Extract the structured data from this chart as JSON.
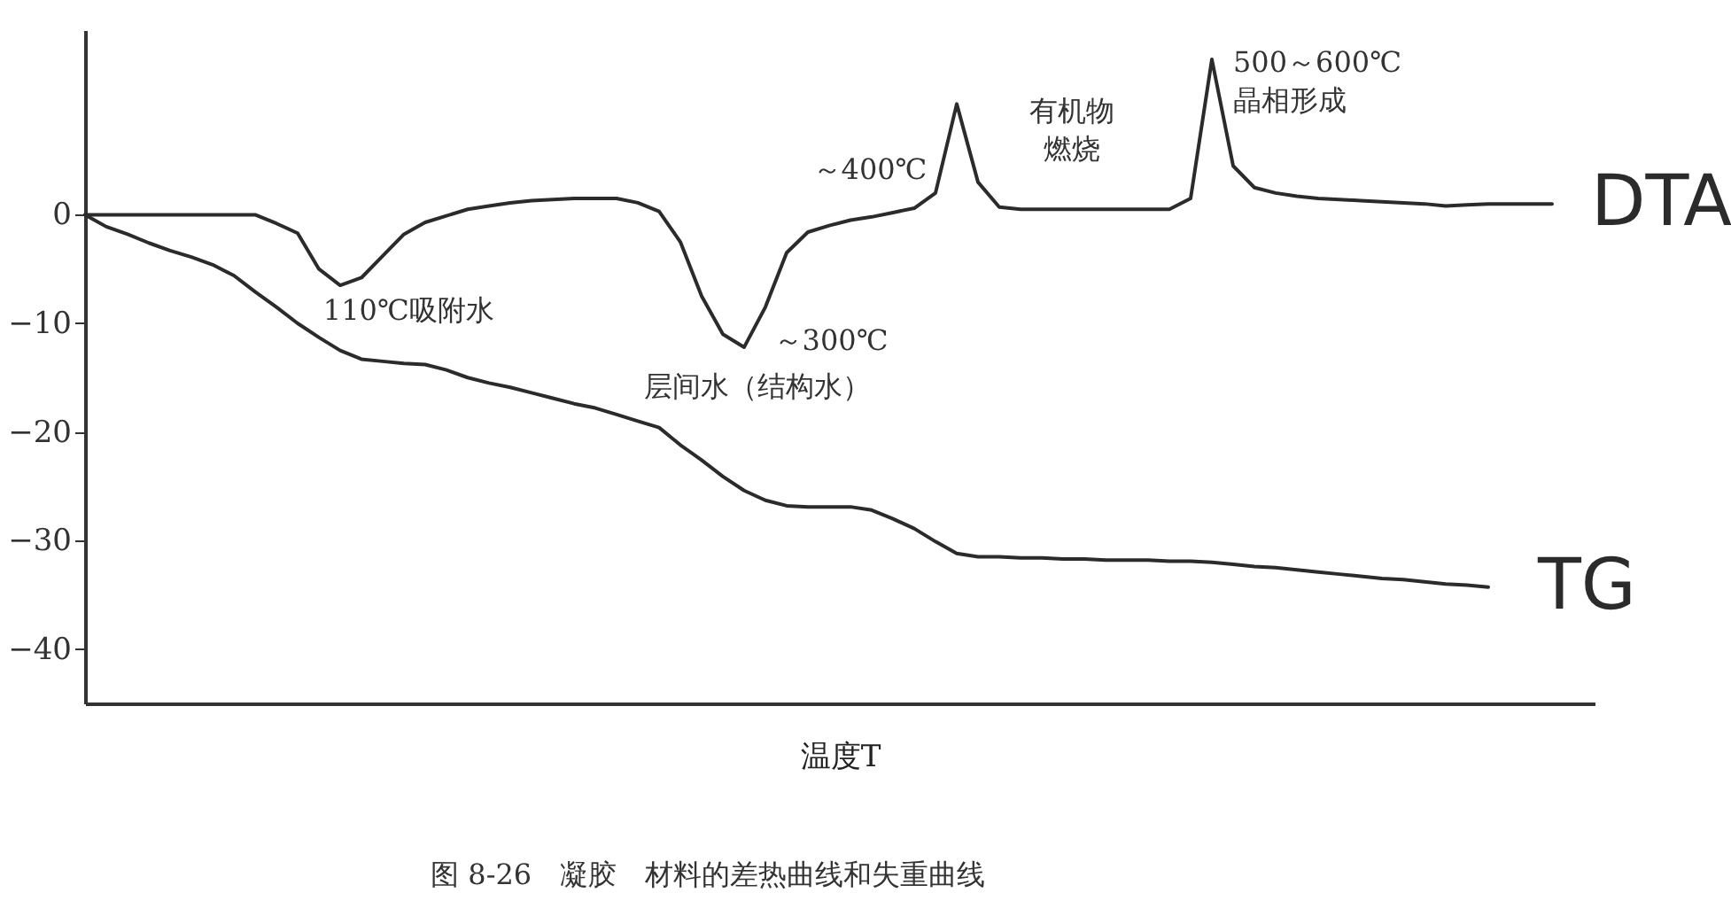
{
  "chart_data": {
    "type": "line",
    "xlabel": "温度T",
    "categories": [
      null,
      null,
      null,
      null,
      null,
      null,
      null,
      null,
      null,
      null,
      null,
      null,
      null,
      null,
      null,
      null,
      null,
      null,
      null,
      null,
      null,
      null,
      null,
      null,
      null,
      null,
      null,
      null,
      null,
      null,
      null,
      null,
      null,
      null,
      null,
      null,
      null,
      null,
      null,
      null,
      null,
      null,
      null,
      null,
      null,
      null,
      null,
      null,
      null,
      null,
      null,
      null,
      null,
      null,
      null,
      null,
      null,
      null,
      null,
      null,
      null,
      null,
      null,
      null,
      null,
      null,
      null,
      null,
      null,
      null,
      null,
      null
    ],
    "series": [
      {
        "name": "DTA",
        "color": "#2b2b2b",
        "values": [
          0,
          0,
          0,
          0,
          0,
          0,
          0,
          0,
          0,
          -0.8,
          -1.7,
          -5,
          -6.5,
          -5.8,
          -3.8,
          -1.8,
          -0.7,
          -0.1,
          0.5,
          0.8,
          1.1,
          1.3,
          1.4,
          1.5,
          1.5,
          1.5,
          1.1,
          0.3,
          -2.5,
          -7.5,
          -11,
          -12.2,
          -8.5,
          -3.5,
          -1.6,
          -1,
          -0.5,
          -0.2,
          0.2,
          0.6,
          2,
          10.2,
          3,
          0.7,
          0.5,
          0.5,
          0.5,
          0.5,
          0.5,
          0.5,
          0.5,
          0.5,
          1.5,
          14.3,
          4.5,
          2.5,
          2,
          1.7,
          1.5,
          1.4,
          1.3,
          1.2,
          1.1,
          1,
          0.8,
          0.9,
          1,
          1,
          1,
          1,
          null,
          null
        ]
      },
      {
        "name": "TG",
        "color": "#2b2b2b",
        "values": [
          0,
          -1.1,
          -1.8,
          -2.6,
          -3.3,
          -3.9,
          -4.6,
          -5.6,
          -7.1,
          -8.5,
          -10,
          -11.3,
          -12.5,
          -13.3,
          -13.5,
          -13.7,
          -13.8,
          -14.3,
          -15,
          -15.5,
          -15.9,
          -16.4,
          -16.9,
          -17.4,
          -17.8,
          -18.4,
          -19,
          -19.6,
          -21.2,
          -22.6,
          -24.1,
          -25.4,
          -26.3,
          -26.8,
          -26.9,
          -26.9,
          -26.9,
          -27.2,
          -28,
          -28.9,
          -30.1,
          -31.2,
          -31.5,
          -31.5,
          -31.6,
          -31.6,
          -31.7,
          -31.7,
          -31.8,
          -31.8,
          -31.8,
          -31.9,
          -31.9,
          -32,
          -32.2,
          -32.4,
          -32.5,
          -32.7,
          -32.9,
          -33.1,
          -33.3,
          -33.5,
          -33.6,
          -33.8,
          -34,
          -34.1,
          -34.3,
          null,
          null,
          null,
          null,
          null
        ]
      }
    ],
    "ylim": [
      -45,
      17
    ],
    "yticks": [
      0,
      -10,
      -20,
      -30,
      -40
    ],
    "grid": false,
    "legend": false,
    "marker": "none",
    "line_style": "solid",
    "annotations": [
      "～400℃",
      "有机物",
      "燃烧",
      "500～600℃",
      "晶相形成",
      "110℃吸附水",
      "～300℃",
      "层间水（结构水）",
      "图 8-26　凝胶　材料的差热曲线和失重曲线"
    ]
  }
}
